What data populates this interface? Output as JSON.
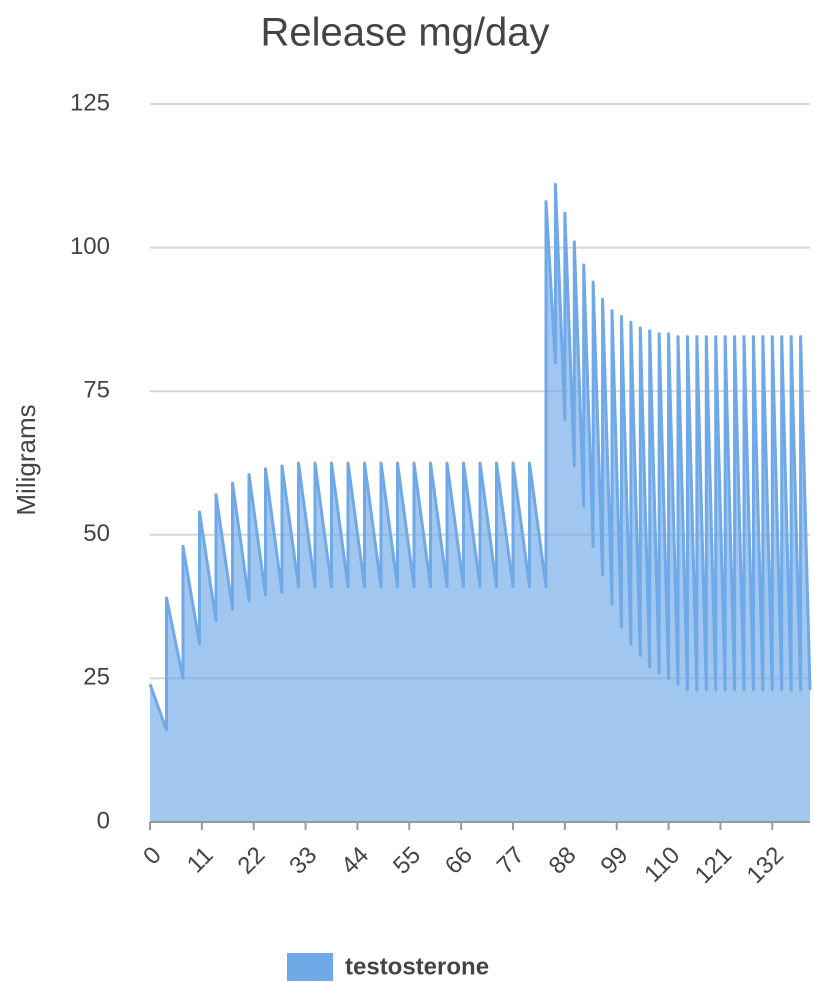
{
  "chart_data": {
    "type": "area",
    "title": "Release mg/day",
    "ylabel": "Miligrams",
    "series": [
      {
        "name": "testosterone",
        "color": "#6fa9e8",
        "x": [
          0,
          3.5,
          3.5,
          7,
          7,
          10.5,
          10.5,
          14,
          14,
          17.5,
          17.5,
          21,
          21,
          24.5,
          24.5,
          28,
          28,
          31.5,
          31.5,
          35,
          35,
          38.5,
          38.5,
          42,
          42,
          45.5,
          45.5,
          49,
          49,
          52.5,
          52.5,
          56,
          56,
          59.5,
          59.5,
          63,
          63,
          66.5,
          66.5,
          70,
          70,
          73.5,
          73.5,
          77,
          77,
          80.5,
          80.5,
          84,
          84,
          86,
          86,
          88,
          88,
          90,
          90,
          92,
          92,
          94,
          94,
          96,
          96,
          98,
          98,
          100,
          100,
          102,
          102,
          104,
          104,
          106,
          106,
          108,
          108,
          110,
          110,
          112,
          112,
          114,
          114,
          116,
          116,
          118,
          118,
          120,
          120,
          122,
          122,
          124,
          124,
          126,
          126,
          128,
          128,
          130,
          130,
          132,
          132,
          134,
          134,
          136,
          136,
          138,
          138,
          140
        ],
        "values": [
          24,
          16,
          39,
          25,
          48,
          31,
          54,
          35,
          57,
          37,
          59,
          38.5,
          60.5,
          39.5,
          61.5,
          40,
          62,
          41,
          62.5,
          41,
          62.5,
          41,
          62.5,
          41,
          62.5,
          41,
          62.5,
          41,
          62.5,
          41,
          62.5,
          41,
          62.5,
          41,
          62.5,
          41,
          62.5,
          41,
          62.5,
          41,
          62.5,
          41,
          62.5,
          41,
          62.5,
          41,
          62.5,
          41,
          108,
          80,
          111,
          70,
          106,
          62,
          101,
          55,
          97,
          48,
          94,
          43,
          91,
          38,
          89,
          34,
          88,
          31,
          87,
          29,
          86,
          27,
          85.5,
          26,
          85,
          25,
          85,
          24,
          84.5,
          23,
          84.5,
          23,
          84.5,
          23,
          84.5,
          23,
          84.5,
          23,
          84.5,
          23,
          84.5,
          23,
          84.5,
          23,
          84.5,
          23,
          84.5,
          23,
          84.5,
          23,
          84.5,
          23,
          84.5,
          23,
          84.5,
          23
        ]
      }
    ],
    "xlim": [
      0,
      140
    ],
    "xticks": [
      0,
      11,
      22,
      33,
      44,
      55,
      66,
      77,
      88,
      99,
      110,
      121,
      132
    ],
    "ylim": [
      0,
      125
    ],
    "yticks": [
      0,
      25,
      50,
      75,
      100,
      125
    ],
    "grid": true,
    "legend": "bottom"
  }
}
